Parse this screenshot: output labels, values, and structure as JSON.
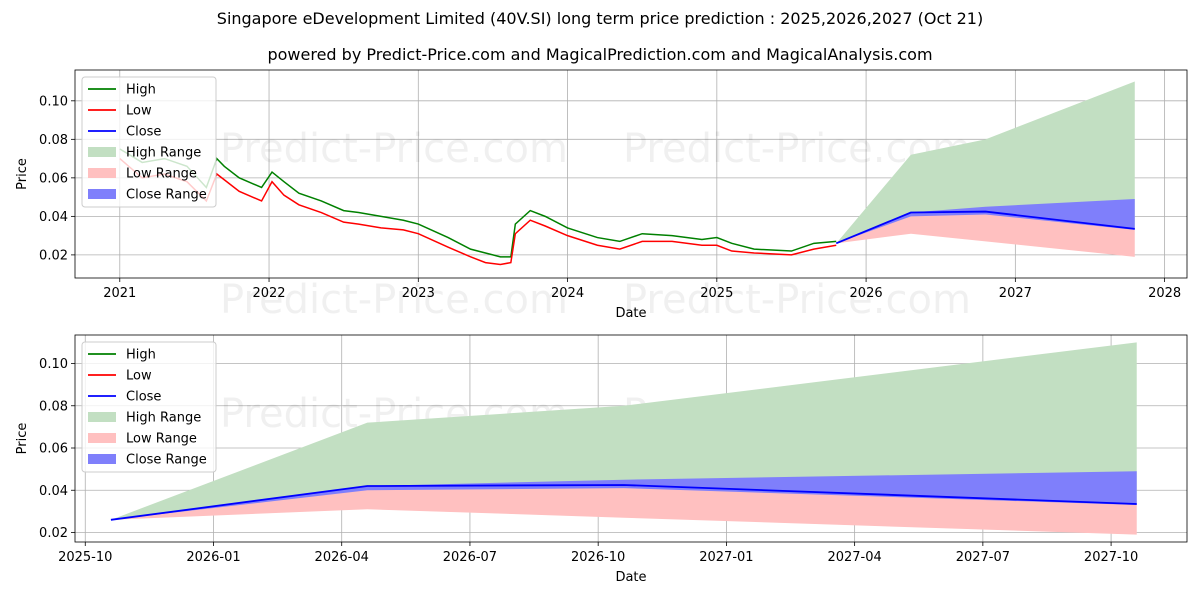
{
  "title": "Singapore eDevelopment Limited (40V.SI) long term price prediction : 2025,2026,2027 (Oct 21)",
  "subtitle": "powered by Predict-Price.com and MagicalPrediction.com and MagicalAnalysis.com",
  "watermark": "Predict-Price.com",
  "colors": {
    "high": "#008000",
    "low": "#ff0000",
    "close": "#0000ff",
    "high_range": "#c2dfc2",
    "low_range": "#ffc0c0",
    "close_range": "#7f7ffb"
  },
  "chart_data": [
    {
      "type": "line",
      "xlabel": "Date",
      "ylabel": "Price",
      "xlim": [
        2020.7,
        2028.15
      ],
      "ylim": [
        0.008,
        0.116
      ],
      "x_ticks": [
        2021,
        2022,
        2023,
        2024,
        2025,
        2026,
        2027,
        2028
      ],
      "x_tick_labels": [
        "2021",
        "2022",
        "2023",
        "2024",
        "2025",
        "2026",
        "2027",
        "2028"
      ],
      "y_ticks": [
        0.02,
        0.04,
        0.06,
        0.08,
        0.1
      ],
      "y_tick_labels": [
        "0.02",
        "0.04",
        "0.06",
        "0.08",
        "0.10"
      ],
      "legend": [
        "High",
        "Low",
        "Close",
        "High Range",
        "Low Range",
        "Close Range"
      ],
      "legend_position": "upper left",
      "history_x": [
        2021.0,
        2021.15,
        2021.3,
        2021.45,
        2021.58,
        2021.65,
        2021.7,
        2021.8,
        2021.95,
        2022.02,
        2022.1,
        2022.2,
        2022.35,
        2022.5,
        2022.6,
        2022.75,
        2022.9,
        2023.0,
        2023.2,
        2023.35,
        2023.45,
        2023.55,
        2023.62,
        2023.65,
        2023.75,
        2023.85,
        2024.0,
        2024.2,
        2024.35,
        2024.5,
        2024.7,
        2024.9,
        2025.0,
        2025.1,
        2025.25,
        2025.5,
        2025.65,
        2025.8
      ],
      "history_high": [
        0.075,
        0.068,
        0.07,
        0.066,
        0.055,
        0.07,
        0.066,
        0.06,
        0.055,
        0.063,
        0.058,
        0.052,
        0.048,
        0.043,
        0.042,
        0.04,
        0.038,
        0.036,
        0.029,
        0.023,
        0.021,
        0.019,
        0.019,
        0.036,
        0.043,
        0.04,
        0.034,
        0.029,
        0.027,
        0.031,
        0.03,
        0.028,
        0.029,
        0.026,
        0.023,
        0.022,
        0.026,
        0.027
      ],
      "history_low": [
        0.07,
        0.06,
        0.062,
        0.058,
        0.048,
        0.062,
        0.059,
        0.053,
        0.048,
        0.058,
        0.051,
        0.046,
        0.042,
        0.037,
        0.036,
        0.034,
        0.033,
        0.031,
        0.024,
        0.019,
        0.016,
        0.015,
        0.016,
        0.031,
        0.038,
        0.035,
        0.03,
        0.025,
        0.023,
        0.027,
        0.027,
        0.025,
        0.025,
        0.022,
        0.021,
        0.02,
        0.023,
        0.025
      ],
      "forecast_x": [
        2025.8,
        2026.3,
        2026.8,
        2027.8
      ],
      "close": [
        0.026,
        0.042,
        0.0425,
        0.0335
      ],
      "high_range": [
        0.026,
        0.072,
        0.08,
        0.11
      ],
      "low_range": [
        0.026,
        0.031,
        0.027,
        0.019
      ],
      "close_range_upper": [
        0.026,
        0.042,
        0.045,
        0.049
      ],
      "close_range_lower": [
        0.026,
        0.04,
        0.041,
        0.033
      ]
    },
    {
      "type": "line",
      "xlabel": "Date",
      "ylabel": "Price",
      "xlim": [
        2025.73,
        2027.898
      ],
      "ylim": [
        0.0155,
        0.1135
      ],
      "x_ticks": [
        2025.75,
        2026.0,
        2026.25,
        2026.5,
        2026.75,
        2027.0,
        2027.25,
        2027.5,
        2027.75
      ],
      "x_tick_labels": [
        "2025-10",
        "2026-01",
        "2026-04",
        "2026-07",
        "2026-10",
        "2027-01",
        "2027-04",
        "2027-07",
        "2027-10"
      ],
      "y_ticks": [
        0.02,
        0.04,
        0.06,
        0.08,
        0.1
      ],
      "y_tick_labels": [
        "0.02",
        "0.04",
        "0.06",
        "0.08",
        "0.10"
      ],
      "legend": [
        "High",
        "Low",
        "Close",
        "High Range",
        "Low Range",
        "Close Range"
      ],
      "legend_position": "upper left",
      "forecast_x": [
        2025.8,
        2026.3,
        2026.8,
        2027.8
      ],
      "close": [
        0.026,
        0.042,
        0.0425,
        0.0335
      ],
      "high_range": [
        0.026,
        0.072,
        0.08,
        0.11
      ],
      "low_range": [
        0.026,
        0.031,
        0.027,
        0.019
      ],
      "close_range_upper": [
        0.026,
        0.042,
        0.045,
        0.049
      ],
      "close_range_lower": [
        0.026,
        0.04,
        0.041,
        0.033
      ]
    }
  ]
}
